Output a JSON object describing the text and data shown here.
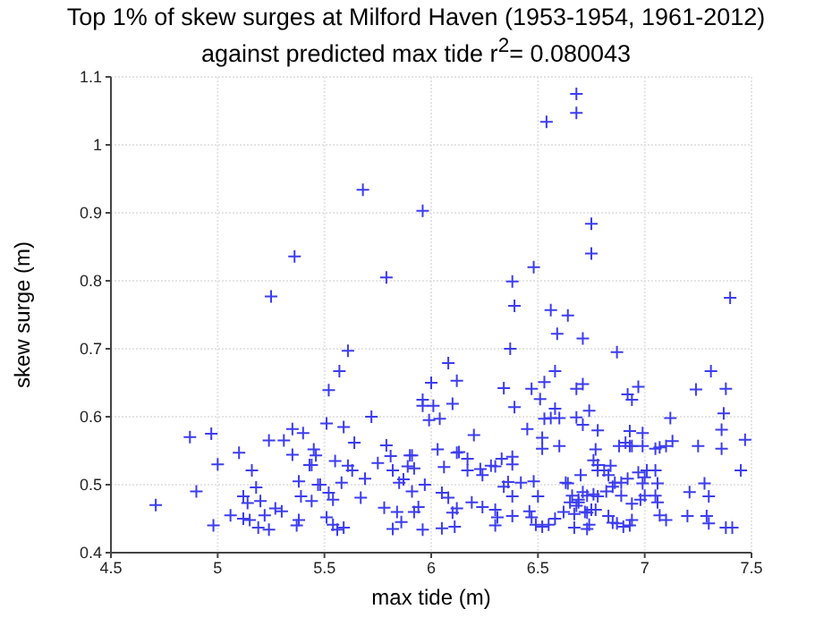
{
  "chart_data": {
    "type": "scatter",
    "title": "Top 1% of skew surges at Milford Haven (1953-1954, 1961-2012)",
    "subtitle": "against predicted max tide r$^{2}$= 0.080043",
    "xlabel": "max tide (m)",
    "ylabel": "skew surge (m)",
    "xlim": [
      4.5,
      7.5
    ],
    "xticks": [
      4.5,
      5,
      5.5,
      6,
      6.5,
      7,
      7.5
    ],
    "ylim": [
      0.4,
      1.1
    ],
    "yticks": [
      0.4,
      0.5,
      0.6,
      0.7,
      0.8,
      0.9,
      1,
      1.1
    ],
    "grid": true,
    "marker": "cross",
    "series": [
      {
        "color": "#3c3cf0",
        "x": [
          4.71,
          4.87,
          4.9,
          4.97,
          4.98,
          5.0,
          5.06,
          5.1,
          5.12,
          5.14,
          5.12,
          5.15,
          5.16,
          5.18,
          5.19,
          5.2,
          5.22,
          5.24,
          5.24,
          5.27,
          5.3,
          5.31,
          5.25,
          5.36,
          5.35,
          5.35,
          5.37,
          5.38,
          5.38,
          5.39,
          5.4,
          5.43,
          5.44,
          5.44,
          5.45,
          5.46,
          5.47,
          5.48,
          5.51,
          5.52,
          5.51,
          5.52,
          5.54,
          5.55,
          5.54,
          5.56,
          5.57,
          5.61,
          5.59,
          5.64,
          5.61,
          5.63,
          5.58,
          5.59,
          5.68,
          5.72,
          5.69,
          5.67,
          5.75,
          5.79,
          5.79,
          5.78,
          5.81,
          5.82,
          5.84,
          5.82,
          5.86,
          5.85,
          5.87,
          5.89,
          5.9,
          5.91,
          5.92,
          5.91,
          5.92,
          5.94,
          5.96,
          5.96,
          5.96,
          5.96,
          5.97,
          5.99,
          6.01,
          6.0,
          6.03,
          6.04,
          6.05,
          6.06,
          6.05,
          6.08,
          6.08,
          6.1,
          6.12,
          6.1,
          6.11,
          6.12,
          6.13,
          6.12,
          6.17,
          6.17,
          6.19,
          6.2,
          6.23,
          6.24,
          6.24,
          6.28,
          6.3,
          6.3,
          6.3,
          6.31,
          6.33,
          6.34,
          6.34,
          6.36,
          6.37,
          6.38,
          6.38,
          6.38,
          6.39,
          6.38,
          6.39,
          6.38,
          6.42,
          6.45,
          6.46,
          6.47,
          6.48,
          6.48,
          6.5,
          6.47,
          6.49,
          6.51,
          6.52,
          6.52,
          6.53,
          6.52,
          6.53,
          6.54,
          6.56,
          6.56,
          6.58,
          6.55,
          6.58,
          6.58,
          6.59,
          6.6,
          6.6,
          6.62,
          6.64,
          6.64,
          6.68,
          6.68,
          6.75,
          6.75,
          6.71,
          6.68,
          6.71,
          6.74,
          6.68,
          6.71,
          6.78,
          6.77,
          6.76,
          6.78,
          6.78,
          6.81,
          6.84,
          6.83,
          6.63,
          6.7,
          6.66,
          6.69,
          6.71,
          6.73,
          6.76,
          6.78,
          6.65,
          6.68,
          6.69,
          6.67,
          6.72,
          6.73,
          6.75,
          6.77,
          6.67,
          6.73,
          6.74,
          6.83,
          6.85,
          6.87,
          6.9,
          6.93,
          6.94,
          6.82,
          6.85,
          6.86,
          6.89,
          6.92,
          6.89,
          6.87,
          6.88,
          6.91,
          6.93,
          6.94,
          6.99,
          6.93,
          6.99,
          6.92,
          6.94,
          6.97,
          6.94,
          6.98,
          7.0,
          6.99,
          7.0,
          7.01,
          6.97,
          7.05,
          7.06,
          7.05,
          7.06,
          7.07,
          7.1,
          7.05,
          7.07,
          7.1,
          7.13,
          7.12,
          7.2,
          7.21,
          7.24,
          7.25,
          7.28,
          7.29,
          7.3,
          7.3,
          7.31,
          7.38,
          7.37,
          7.36,
          7.36,
          7.38,
          7.41,
          7.4,
          7.45,
          7.47
        ],
        "values": [
          0.47,
          0.57,
          0.49,
          0.575,
          0.44,
          0.53,
          0.455,
          0.547,
          0.483,
          0.473,
          0.45,
          0.448,
          0.521,
          0.496,
          0.437,
          0.476,
          0.455,
          0.565,
          0.434,
          0.465,
          0.461,
          0.565,
          0.777,
          0.836,
          0.582,
          0.544,
          0.44,
          0.448,
          0.505,
          0.483,
          0.576,
          0.529,
          0.529,
          0.476,
          0.552,
          0.543,
          0.5,
          0.5,
          0.59,
          0.639,
          0.452,
          0.488,
          0.478,
          0.535,
          0.441,
          0.434,
          0.667,
          0.697,
          0.585,
          0.562,
          0.528,
          0.521,
          0.503,
          0.437,
          0.934,
          0.6,
          0.509,
          0.481,
          0.532,
          0.558,
          0.805,
          0.466,
          0.542,
          0.521,
          0.46,
          0.435,
          0.445,
          0.503,
          0.508,
          0.527,
          0.543,
          0.543,
          0.524,
          0.49,
          0.46,
          0.467,
          0.434,
          0.903,
          0.625,
          0.616,
          0.5,
          0.595,
          0.616,
          0.65,
          0.552,
          0.597,
          0.436,
          0.526,
          0.488,
          0.481,
          0.679,
          0.619,
          0.653,
          0.459,
          0.438,
          0.547,
          0.548,
          0.465,
          0.521,
          0.538,
          0.474,
          0.573,
          0.523,
          0.467,
          0.514,
          0.528,
          0.527,
          0.463,
          0.44,
          0.452,
          0.538,
          0.642,
          0.497,
          0.504,
          0.7,
          0.541,
          0.483,
          0.799,
          0.763,
          0.53,
          0.614,
          0.454,
          0.503,
          0.582,
          0.461,
          0.641,
          0.82,
          0.505,
          0.483,
          0.452,
          0.441,
          0.626,
          0.569,
          0.553,
          0.651,
          0.438,
          0.597,
          1.034,
          0.757,
          0.598,
          0.45,
          0.441,
          0.612,
          0.667,
          0.722,
          0.598,
          0.557,
          0.46,
          0.502,
          0.749,
          1.075,
          1.047,
          0.884,
          0.84,
          0.715,
          0.641,
          0.648,
          0.609,
          0.599,
          0.588,
          0.58,
          0.552,
          0.536,
          0.529,
          0.521,
          0.521,
          0.528,
          0.514,
          0.503,
          0.514,
          0.484,
          0.478,
          0.489,
          0.484,
          0.486,
          0.483,
          0.474,
          0.469,
          0.474,
          0.457,
          0.46,
          0.459,
          0.463,
          0.463,
          0.437,
          0.435,
          0.441,
          0.454,
          0.444,
          0.443,
          0.438,
          0.44,
          0.448,
          0.49,
          0.497,
          0.503,
          0.503,
          0.509,
          0.484,
          0.695,
          0.557,
          0.562,
          0.557,
          0.557,
          0.557,
          0.579,
          0.576,
          0.633,
          0.625,
          0.644,
          0.472,
          0.478,
          0.484,
          0.502,
          0.511,
          0.521,
          0.518,
          0.521,
          0.502,
          0.484,
          0.474,
          0.455,
          0.448,
          0.553,
          0.555,
          0.557,
          0.564,
          0.598,
          0.454,
          0.489,
          0.64,
          0.557,
          0.502,
          0.454,
          0.483,
          0.443,
          0.667,
          0.641,
          0.605,
          0.581,
          0.553,
          0.437,
          0.437,
          0.775,
          0.521,
          0.566
        ]
      }
    ]
  }
}
